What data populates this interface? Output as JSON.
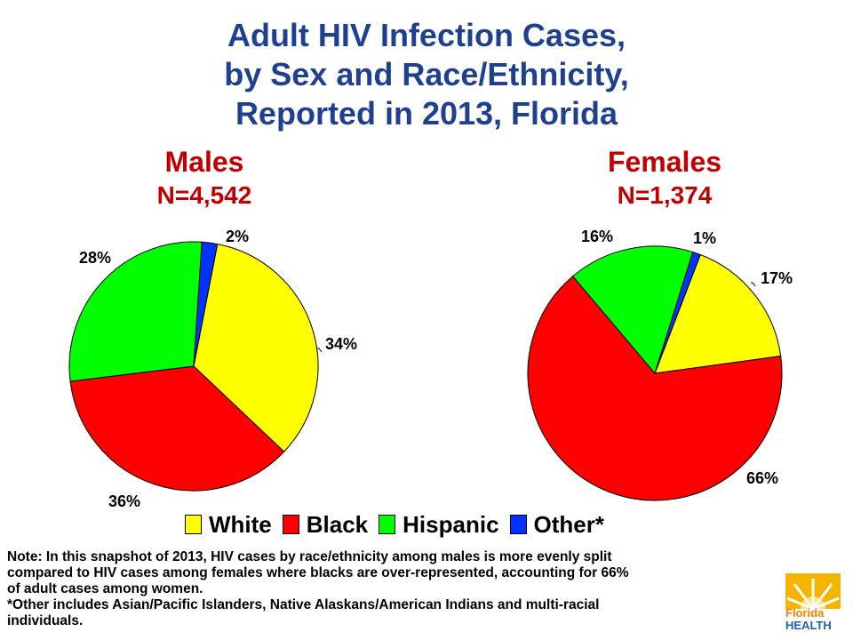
{
  "title": {
    "line1": "Adult HIV Infection Cases,",
    "line2": "by Sex and  Race/Ethnicity,",
    "line3": "Reported in 2013, Florida"
  },
  "colors": {
    "White": "#ffff00",
    "Black": "#ff0000",
    "Hispanic": "#00ff00",
    "Other*": "#0033ff",
    "title": "#1f3f8f",
    "heading": "#c00000"
  },
  "chart_data": [
    {
      "type": "pie",
      "title": "Males",
      "subtitle": "N=4,542",
      "categories": [
        "White",
        "Black",
        "Hispanic",
        "Other*"
      ],
      "values": [
        34,
        36,
        28,
        2
      ],
      "labels": [
        "34%",
        "36%",
        "28%",
        "2%"
      ]
    },
    {
      "type": "pie",
      "title": "Females",
      "subtitle": "N=1,374",
      "categories": [
        "White",
        "Black",
        "Hispanic",
        "Other*"
      ],
      "values": [
        17,
        66,
        16,
        1
      ],
      "labels": [
        "17%",
        "66%",
        "16%",
        "1%"
      ]
    }
  ],
  "legend": [
    "White",
    "Black",
    "Hispanic",
    "Other*"
  ],
  "note": {
    "line1": "Note:  In this snapshot of 2013, HIV cases by race/ethnicity among males is more evenly split",
    "line2": "compared to HIV cases among females where blacks are over-represented, accounting for 66%",
    "line3": "of adult cases among women.",
    "line4": "*Other includes Asian/Pacific Islanders, Native Alaskans/American Indians and multi-racial",
    "line5": "individuals."
  },
  "logo": {
    "line1": "Florida",
    "line2": "HEALTH"
  }
}
